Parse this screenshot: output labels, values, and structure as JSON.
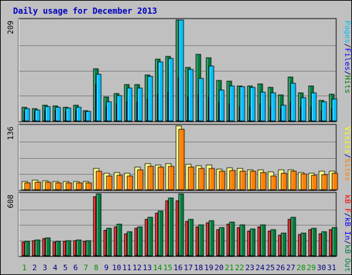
{
  "chart_data": {
    "type": "bar",
    "title": "Daily usage for December 2013",
    "categories": [
      "1",
      "2",
      "3",
      "4",
      "5",
      "6",
      "7",
      "8",
      "9",
      "10",
      "11",
      "12",
      "13",
      "14",
      "15",
      "16",
      "17",
      "18",
      "19",
      "20",
      "21",
      "22",
      "23",
      "24",
      "25",
      "26",
      "27",
      "28",
      "29",
      "30",
      "31"
    ],
    "weekend_days": [
      "1",
      "7",
      "8",
      "14",
      "15",
      "21",
      "22",
      "28",
      "29"
    ],
    "panels": [
      {
        "id": "hits",
        "max_label": "209",
        "ylim": [
          0,
          209
        ],
        "legend": [
          {
            "text": "Pages",
            "color": "#00c0ff"
          },
          {
            "text": "/",
            "color": "#000080"
          },
          {
            "text": "Files",
            "color": "#0000ff"
          },
          {
            "text": "/",
            "color": "#000080"
          },
          {
            "text": "Hits",
            "color": "#008000"
          }
        ],
        "series": [
          {
            "name": "Hits",
            "color": "#008040",
            "values": [
              28,
              26,
              33,
              31,
              29,
              32,
              22,
              108,
              50,
              57,
              76,
              76,
              95,
              128,
              134,
              209,
              111,
              138,
              131,
              84,
              82,
              72,
              73,
              77,
              70,
              54,
              91,
              58,
              72,
              43,
              55
            ]
          },
          {
            "name": "Files",
            "color": "#0000ff",
            "values": [
              20,
              20,
              22,
              21,
              20,
              21,
              18,
              76,
              30,
              35,
              40,
              40,
              45,
              55,
              60,
              90,
              50,
              55,
              50,
              38,
              35,
              30,
              30,
              35,
              30,
              25,
              40,
              28,
              30,
              22,
              25
            ]
          },
          {
            "name": "Pages",
            "color": "#00c0ff",
            "values": [
              26,
              23,
              30,
              28,
              27,
              29,
              20,
              96,
              40,
              52,
              68,
              68,
              92,
              122,
              130,
              209,
              107,
              88,
              114,
              64,
              72,
              71,
              70,
              60,
              58,
              32,
              78,
              48,
              58,
              40,
              45
            ]
          }
        ]
      },
      {
        "id": "visits",
        "max_label": "136",
        "ylim": [
          0,
          136
        ],
        "legend": [
          {
            "text": "Visits",
            "color": "#ffff00"
          },
          {
            "text": "/",
            "color": "#000080"
          },
          {
            "text": "Sites",
            "color": "#ff8000"
          }
        ],
        "series": [
          {
            "name": "Visits",
            "color": "#ffff80",
            "values": [
              18,
              20,
              19,
              17,
              18,
              18,
              17,
              46,
              35,
              37,
              35,
              48,
              56,
              53,
              56,
              136,
              54,
              51,
              52,
              44,
              47,
              46,
              43,
              42,
              38,
              42,
              43,
              37,
              35,
              39,
              40
            ]
          },
          {
            "name": "Sites",
            "color": "#ff8000",
            "values": [
              15,
              16,
              16,
              15,
              14,
              15,
              14,
              40,
              29,
              31,
              29,
              42,
              50,
              48,
              50,
              128,
              48,
              46,
              45,
              39,
              41,
              40,
              39,
              36,
              29,
              35,
              39,
              33,
              31,
              32,
              35
            ]
          }
        ]
      },
      {
        "id": "kb",
        "max_label": "608",
        "ylim": [
          0,
          608
        ],
        "legend": [
          {
            "text": "kB F",
            "color": "#ff0000"
          },
          {
            "text": "/",
            "color": "#000080"
          },
          {
            "text": "kB In",
            "color": "#0000ff"
          },
          {
            "text": "/",
            "color": "#000080"
          },
          {
            "text": "kB Out",
            "color": "#008040"
          }
        ],
        "series": [
          {
            "name": "kB F",
            "color": "#c80000",
            "values": [
              135,
              147,
              168,
              135,
              140,
              147,
              140,
              579,
              249,
              285,
              215,
              268,
              357,
              420,
              540,
              540,
              336,
              287,
              325,
              256,
              312,
              280,
              245,
              285,
              241,
              202,
              355,
              209,
              255,
              215,
              255
            ]
          },
          {
            "name": "kB In",
            "color": "#0000ff",
            "values": [
              5,
              5,
              5,
              5,
              5,
              5,
              5,
              20,
              10,
              12,
              10,
              12,
              15,
              18,
              22,
              25,
              14,
              12,
              14,
              12,
              12,
              12,
              10,
              12,
              10,
              8,
              15,
              10,
              10,
              8,
              10
            ]
          },
          {
            "name": "kB Out",
            "color": "#008040",
            "values": [
              140,
              153,
              173,
              140,
              146,
              153,
              146,
              606,
              270,
              310,
              234,
              285,
              378,
              440,
              566,
              608,
              357,
              306,
              346,
              276,
              332,
              301,
              266,
              306,
              260,
              220,
              375,
              225,
              270,
              235,
              275
            ]
          }
        ]
      }
    ]
  }
}
